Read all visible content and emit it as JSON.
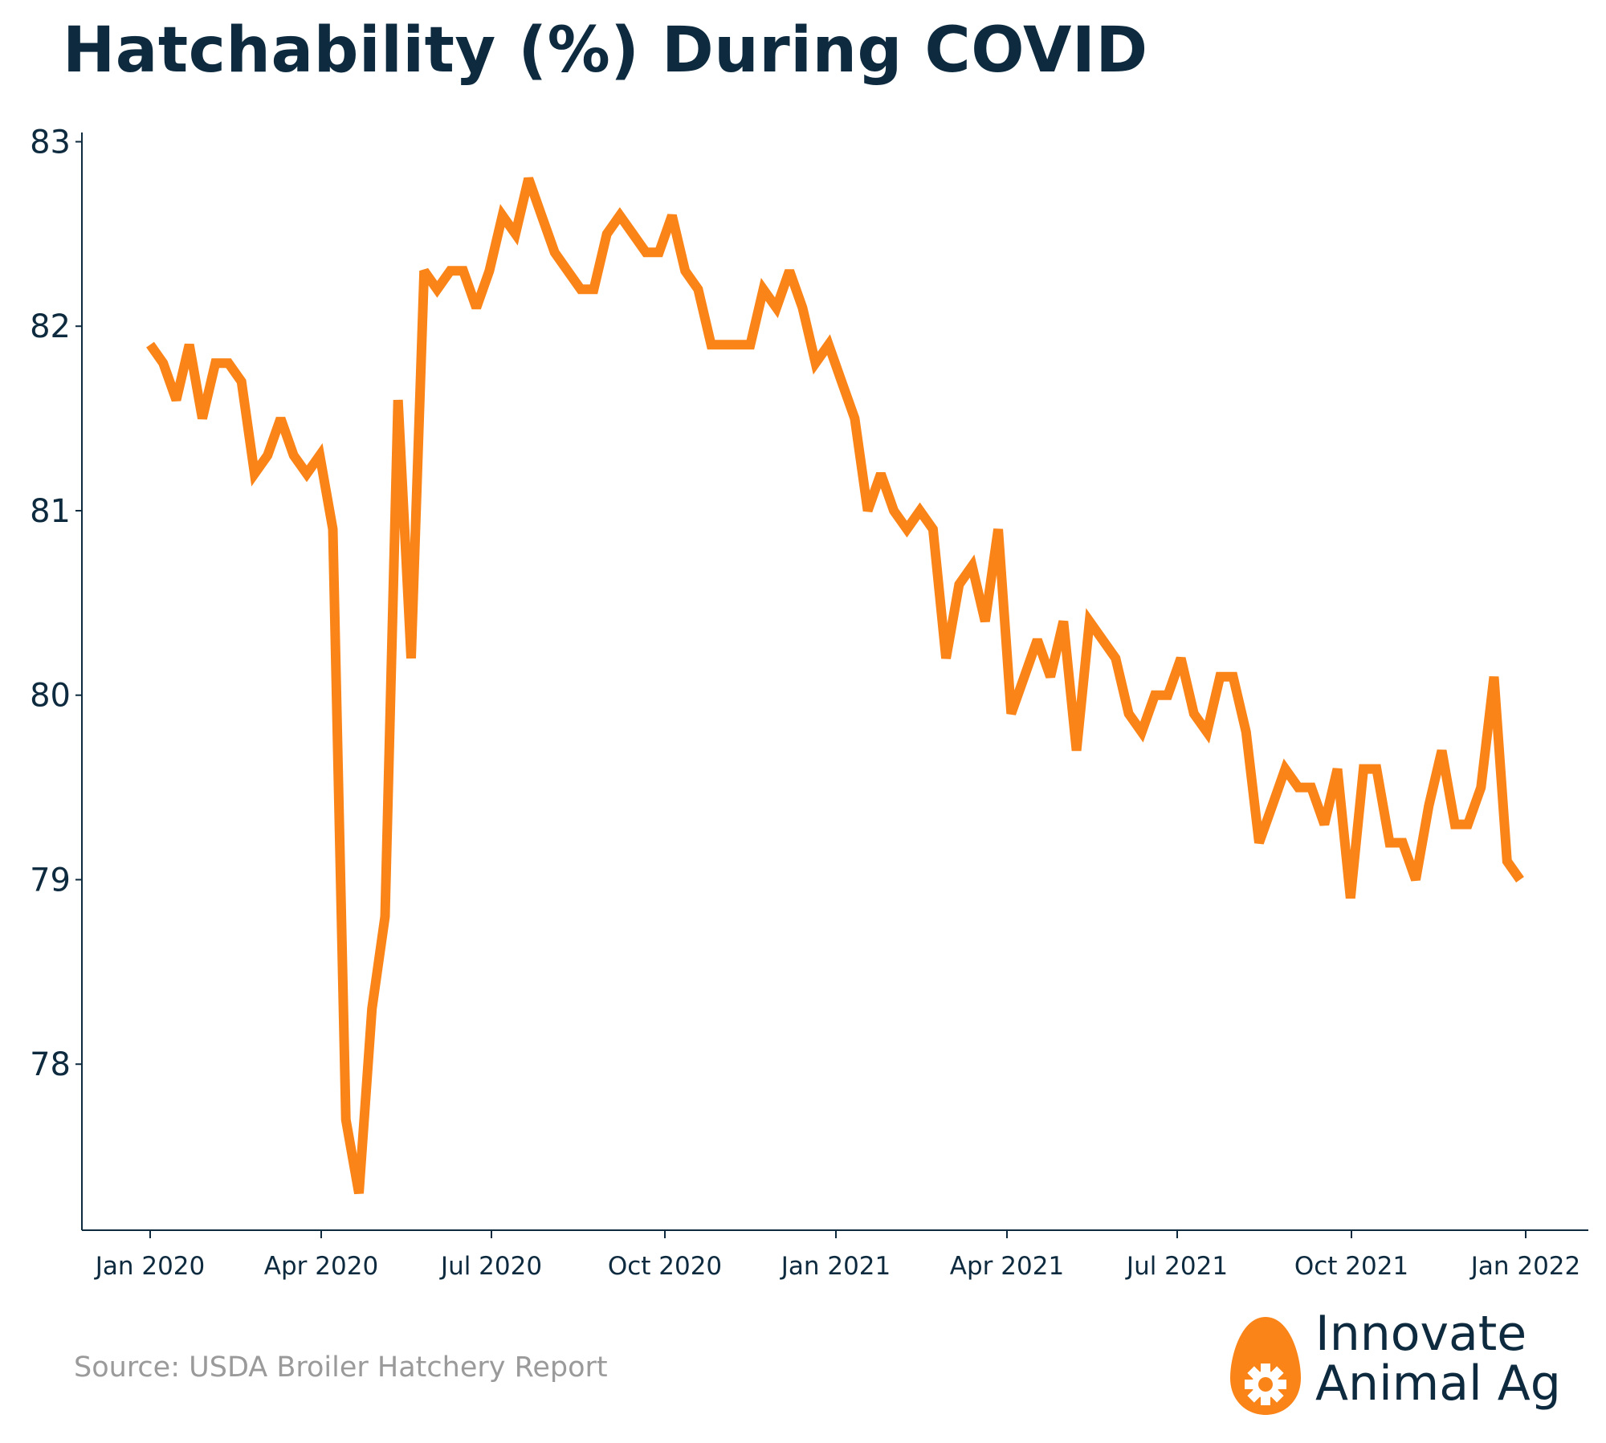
{
  "chart_data": {
    "type": "line",
    "title": "Hatchability (%) During COVID",
    "xlabel": "",
    "ylabel": "",
    "x_tick_labels": [
      "Jan 2020",
      "Apr 2020",
      "Jul 2020",
      "Oct 2020",
      "Jan 2021",
      "Apr 2021",
      "Jul 2021",
      "Oct 2021",
      "Jan 2022"
    ],
    "y_ticks": [
      78,
      79,
      80,
      81,
      82,
      83
    ],
    "ylim": [
      77.1,
      83.05
    ],
    "grid": false,
    "legend": "none",
    "color": "#fa8418",
    "series": [
      {
        "values": [
          81.9,
          81.8,
          81.6,
          81.9,
          81.5,
          81.8,
          81.8,
          81.7,
          81.2,
          81.3,
          81.5,
          81.3,
          81.2,
          81.3,
          80.9,
          77.7,
          77.3,
          78.3,
          78.8,
          81.6,
          80.2,
          82.3,
          82.2,
          82.3,
          82.3,
          82.1,
          82.3,
          82.6,
          82.5,
          82.8,
          82.6,
          82.4,
          82.3,
          82.2,
          82.2,
          82.5,
          82.6,
          82.5,
          82.4,
          82.4,
          82.6,
          82.3,
          82.2,
          81.9,
          81.9,
          81.9,
          81.9,
          82.2,
          82.1,
          82.3,
          82.1,
          81.8,
          81.9,
          81.7,
          81.5,
          81.0,
          81.2,
          81.0,
          80.9,
          81.0,
          80.9,
          80.2,
          80.6,
          80.7,
          80.4,
          80.9,
          79.9,
          80.1,
          80.3,
          80.1,
          80.4,
          79.7,
          80.4,
          80.3,
          80.2,
          79.9,
          79.8,
          80.0,
          80.0,
          80.2,
          79.9,
          79.8,
          80.1,
          80.1,
          79.8,
          79.2,
          79.4,
          79.6,
          79.5,
          79.5,
          79.3,
          79.6,
          78.9,
          79.6,
          79.6,
          79.2,
          79.2,
          79.0,
          79.4,
          79.7,
          79.3,
          79.3,
          79.5,
          80.1,
          79.1,
          79.0
        ]
      }
    ]
  },
  "source": "Source: USDA Broiler Hatchery Report",
  "logo": {
    "line1": "Innovate",
    "line2": "Animal Ag",
    "name": "gear-egg-icon"
  },
  "colors": {
    "title": "#0d2a3f",
    "line": "#fa8418",
    "axis": "#0d2a3f",
    "source": "#9a9a9a",
    "logo_icon": "#fa8418"
  }
}
